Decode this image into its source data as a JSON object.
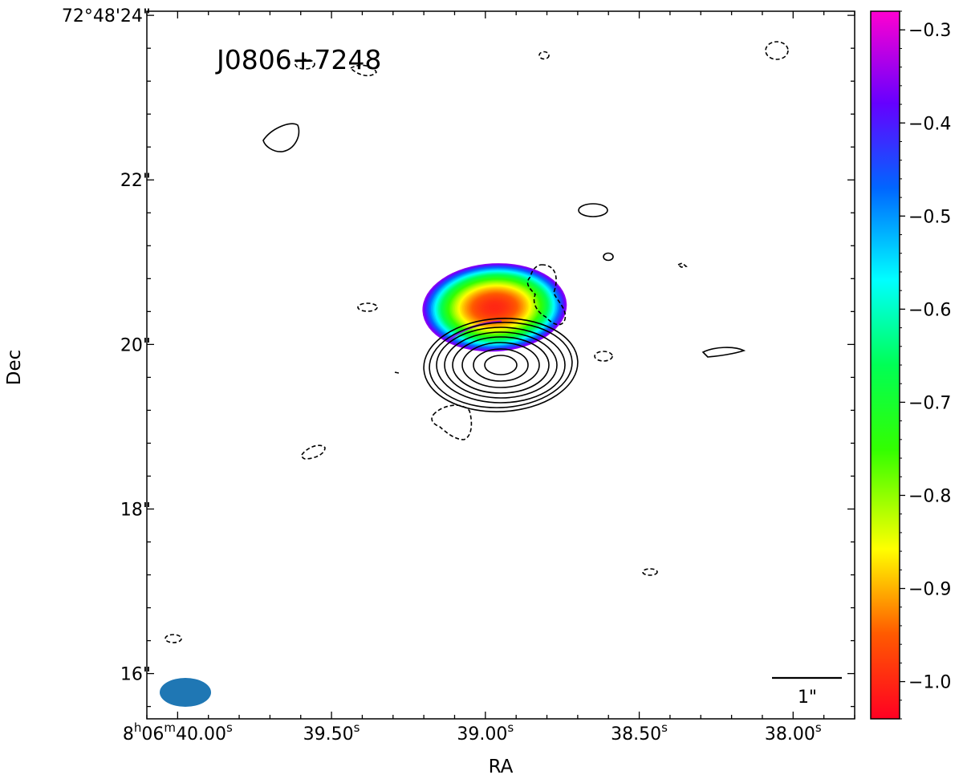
{
  "chart_data": {
    "type": "heatmap",
    "title": "J0806+7248",
    "xlabel": "RA",
    "ylabel": "Dec",
    "x_ticks": [
      {
        "value": 40.0,
        "prefix": "8",
        "h": "h",
        "mid": "06",
        "m": "m",
        "sec": "40.00",
        "s": "s"
      },
      {
        "value": 39.5,
        "sec": "39.50",
        "s": "s"
      },
      {
        "value": 39.0,
        "sec": "39.00",
        "s": "s"
      },
      {
        "value": 38.5,
        "sec": "38.50",
        "s": "s"
      },
      {
        "value": 38.0,
        "sec": "38.00",
        "s": "s"
      }
    ],
    "y_ticks": [
      {
        "value": 24,
        "label": "72°48'24\""
      },
      {
        "value": 22,
        "label": "22\""
      },
      {
        "value": 20,
        "label": "20\""
      },
      {
        "value": 18,
        "label": "18\""
      },
      {
        "value": 16,
        "label": "16\""
      }
    ],
    "xlim": [
      40.1,
      37.8
    ],
    "ylim": [
      15.45,
      24.05
    ],
    "colorbar": {
      "ticks": [
        -0.3,
        -0.4,
        -0.5,
        -0.6,
        -0.7,
        -0.8,
        -0.9,
        -1.0
      ],
      "tick_labels": [
        "−0.3",
        "−0.4",
        "−0.5",
        "−0.6",
        "−0.7",
        "−0.8",
        "−0.9",
        "−1.0"
      ],
      "range": [
        -1.04,
        -0.28
      ],
      "colormap": "gist_rainbow"
    },
    "source": {
      "peak_ra_s": 38.97,
      "peak_dec_s": 20.45,
      "spectral_index_peak": -1.0,
      "spectral_index_edge": -0.35
    },
    "beam": {
      "ra_s": 39.95,
      "dec_s": 15.82,
      "color": "#1f77b4"
    },
    "scalebar": {
      "label": "1\"",
      "ra_start_s": 38.1,
      "ra_end_s": 37.85,
      "dec_s": 16.03
    }
  }
}
